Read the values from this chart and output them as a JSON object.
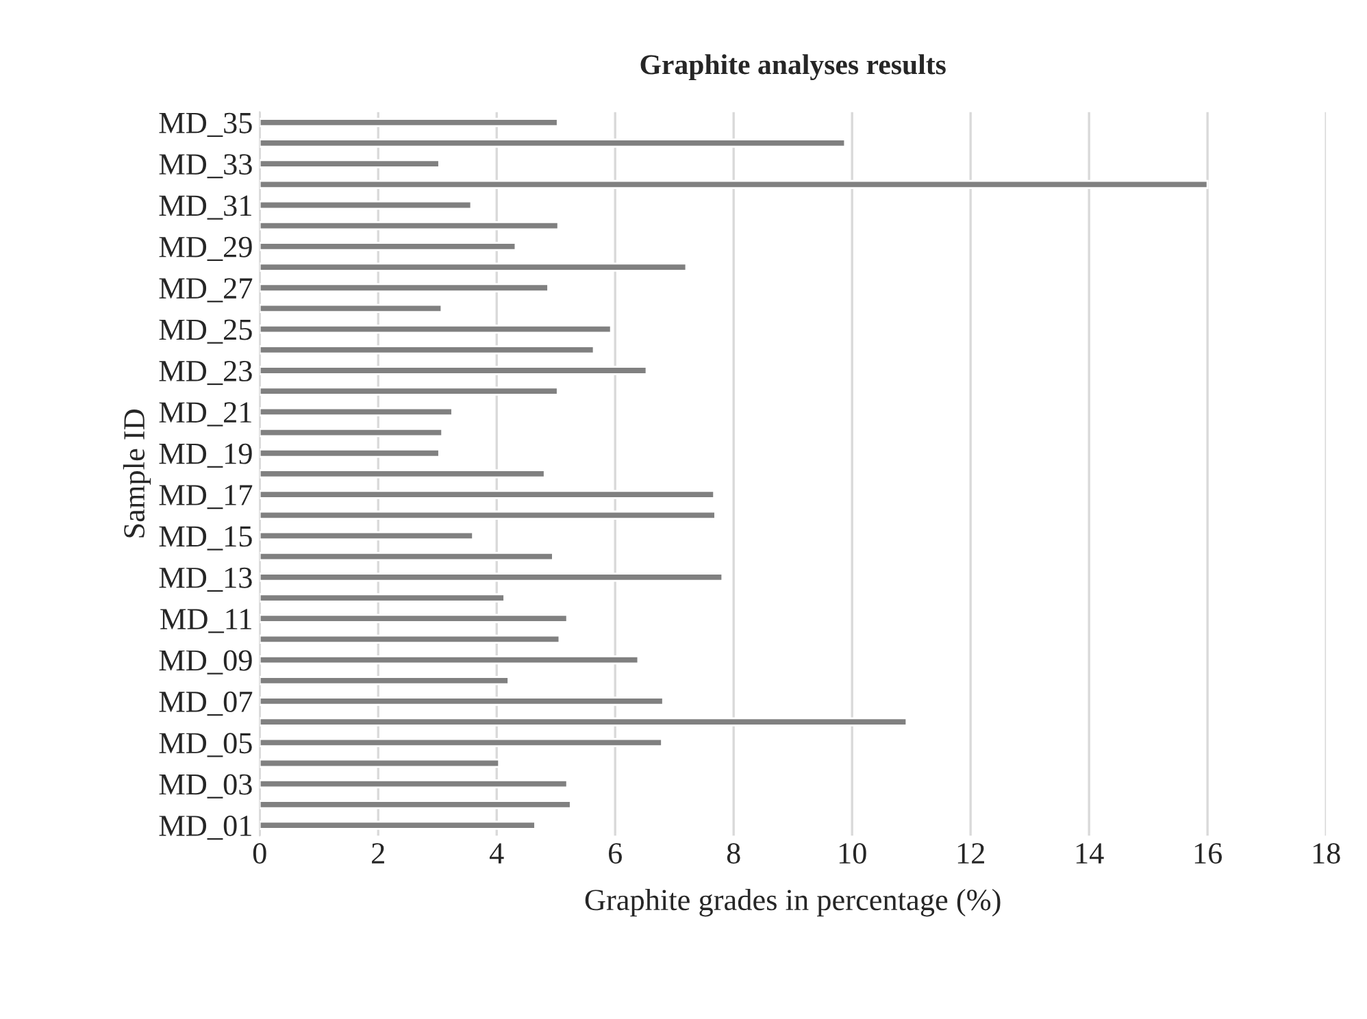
{
  "chart_data": {
    "type": "bar",
    "orientation": "horizontal",
    "title": "Graphite analyses results",
    "xlabel": "Graphite grades in percentage (%)",
    "ylabel": "Sample ID",
    "categories": [
      "MD_35",
      null,
      "MD_33",
      null,
      "MD_31",
      null,
      "MD_29",
      null,
      "MD_27",
      null,
      "MD_25",
      null,
      "MD_23",
      null,
      "MD_21",
      null,
      "MD_19",
      null,
      "MD_17",
      null,
      "MD_15",
      null,
      "MD_13",
      null,
      "MD_11",
      null,
      "MD_09",
      null,
      "MD_07",
      null,
      "MD_05",
      null,
      "MD_03",
      null,
      "MD_01"
    ],
    "values": [
      5.03,
      9.88,
      3.03,
      16.0,
      3.57,
      5.04,
      4.32,
      7.2,
      4.87,
      3.07,
      5.93,
      5.64,
      6.53,
      5.03,
      3.25,
      3.08,
      3.03,
      4.81,
      7.67,
      7.69,
      3.6,
      4.95,
      7.81,
      4.13,
      5.19,
      5.06,
      6.39,
      4.2,
      6.81,
      10.92,
      6.79,
      4.04,
      5.19,
      5.25,
      4.65
    ],
    "color": "#808080",
    "xlim": [
      0,
      18
    ],
    "xticks": [
      0,
      2,
      4,
      6,
      8,
      10,
      12,
      14,
      16,
      18
    ],
    "grid": "x",
    "legend": false
  }
}
